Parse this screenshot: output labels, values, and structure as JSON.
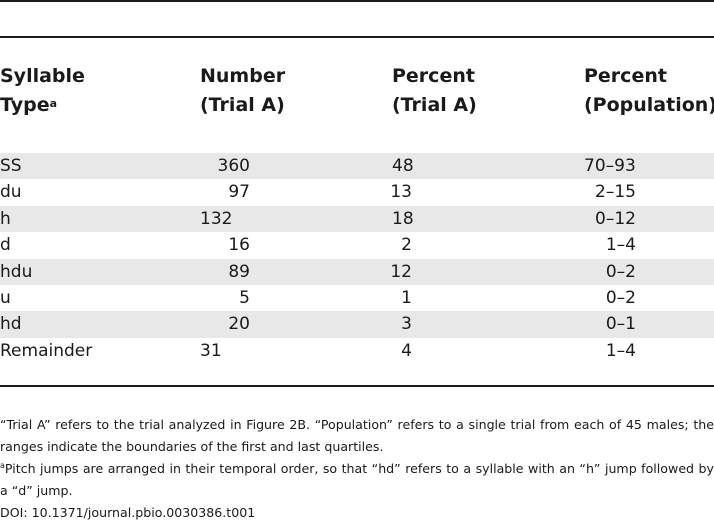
{
  "table": {
    "headers": {
      "col1_line1": "Syllable",
      "col1_line2": "Type",
      "col1_sup": "a",
      "col2_line1": "Number",
      "col2_line2": "(Trial A)",
      "col3_line1": "Percent",
      "col3_line2": "(Trial A)",
      "col4_line1": "Percent",
      "col4_line2": "(Population)"
    },
    "rows": [
      {
        "type": "SS",
        "number": "360",
        "percent_trial": "48",
        "percent_pop": "70–93"
      },
      {
        "type": "du",
        "number": "97",
        "percent_trial": "13",
        "percent_pop": "2–15"
      },
      {
        "type": "h",
        "number": "132",
        "percent_trial": "18",
        "percent_pop": "0–12"
      },
      {
        "type": "d",
        "number": "16",
        "percent_trial": "2",
        "percent_pop": "1–4"
      },
      {
        "type": "hdu",
        "number": "89",
        "percent_trial": "12",
        "percent_pop": "0–2"
      },
      {
        "type": "u",
        "number": "5",
        "percent_trial": "1",
        "percent_pop": "0–2"
      },
      {
        "type": "hd",
        "number": "20",
        "percent_trial": "3",
        "percent_pop": "0–1"
      },
      {
        "type": "Remainder",
        "number": "31",
        "percent_trial": "4",
        "percent_pop": "1–4"
      }
    ]
  },
  "notes": {
    "note1": "“Trial A” refers to the trial analyzed in Figure 2B. “Population” refers to a single trial from each of 45 males; the ranges indicate the boundaries of the first and last quartiles.",
    "note2_sup": "a",
    "note2": "Pitch jumps are arranged in their temporal order, so that “hd” refers to a syllable with an “h” jump followed by a “d” jump.",
    "doi": "DOI: 10.1371/journal.pbio.0030386.t001"
  }
}
